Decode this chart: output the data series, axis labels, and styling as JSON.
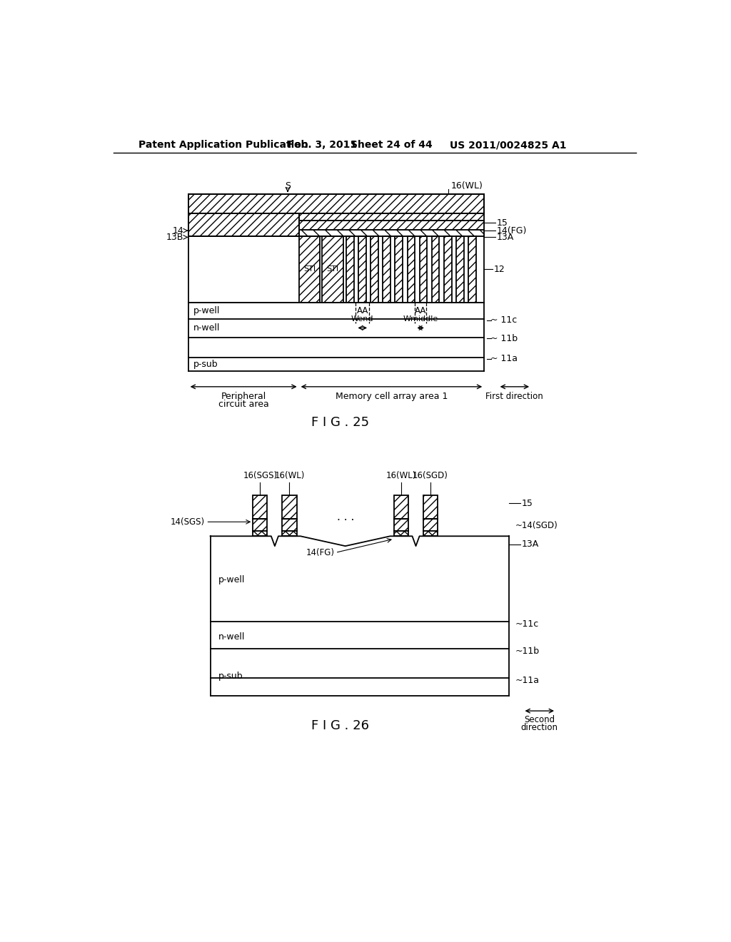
{
  "bg_color": "#ffffff",
  "line_color": "#000000",
  "header_text": "Patent Application Publication",
  "header_date": "Feb. 3, 2011",
  "header_sheet": "Sheet 24 of 44",
  "header_patent": "US 2011/0024825 A1",
  "fig25_label": "F I G . 25",
  "fig26_label": "F I G . 26"
}
